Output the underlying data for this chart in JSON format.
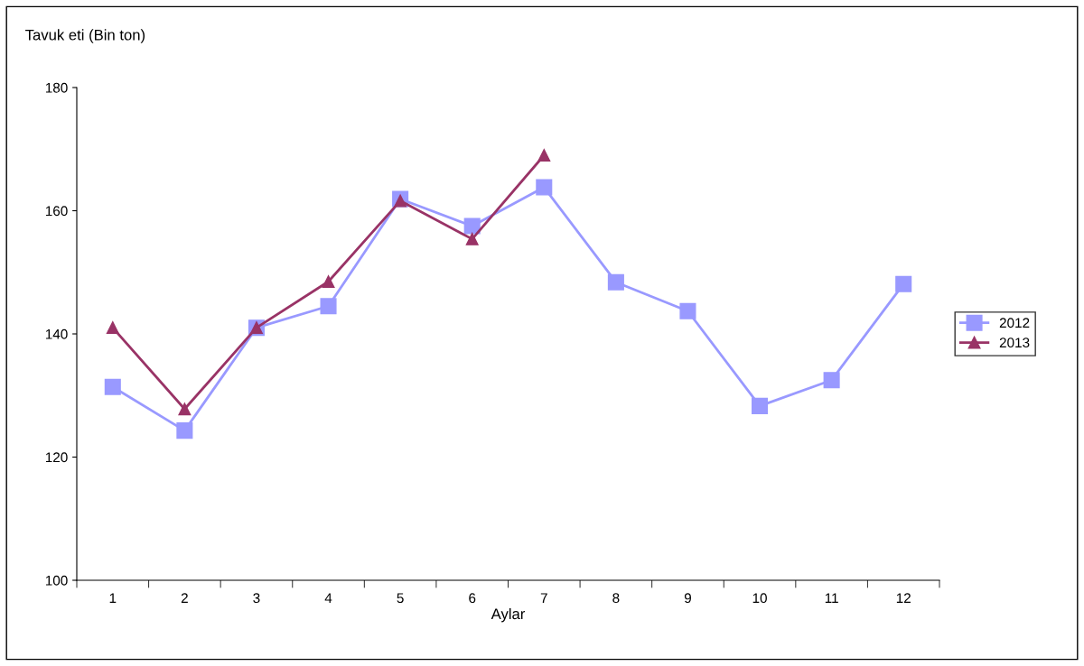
{
  "chart_data": {
    "type": "line",
    "ylabel": "Tavuk eti (Bin ton)",
    "xlabel": "Aylar",
    "categories": [
      "1",
      "2",
      "3",
      "4",
      "5",
      "6",
      "7",
      "8",
      "9",
      "10",
      "11",
      "12"
    ],
    "series": [
      {
        "name": "2012",
        "color": "#9999ff",
        "marker": "square",
        "values": [
          131.4,
          124.3,
          141.0,
          144.5,
          161.9,
          157.5,
          163.8,
          148.4,
          143.7,
          128.3,
          132.5,
          148.1
        ]
      },
      {
        "name": "2013",
        "color": "#993366",
        "marker": "triangle",
        "values": [
          141.0,
          127.8,
          141.0,
          148.5,
          161.6,
          155.4,
          169.0,
          null,
          null,
          null,
          null,
          null
        ]
      }
    ],
    "ylim": [
      100,
      180
    ],
    "yticks": [
      100,
      120,
      140,
      160,
      180
    ],
    "grid": false,
    "legend": "right",
    "line_style": "solid"
  }
}
